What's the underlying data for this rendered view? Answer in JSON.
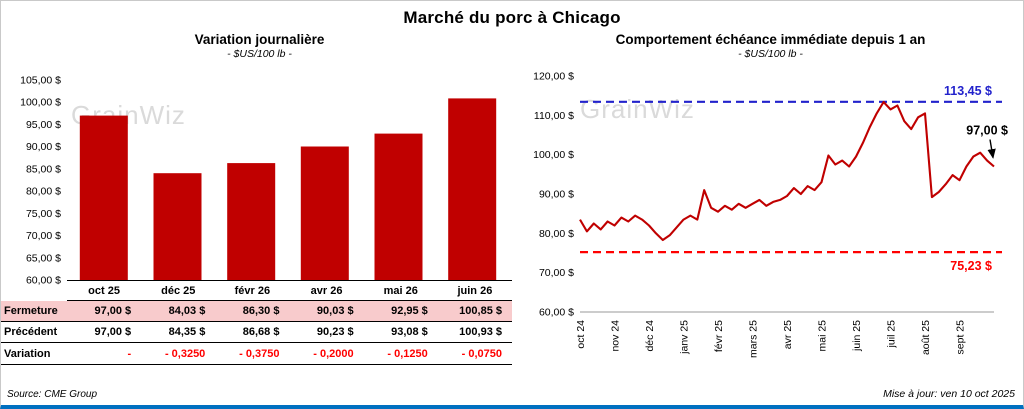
{
  "page": {
    "title": "Marché du porc à Chicago",
    "source": "Source: CME Group",
    "updated": "Mise à jour: ven 10 oct 2025",
    "watermark": "GrainWiz"
  },
  "left_table": {
    "rows": [
      {
        "label": "Fermeture",
        "values": [
          "97,00  $",
          "84,03  $",
          "86,30  $",
          "90,03  $",
          "92,95  $",
          "100,85 $"
        ]
      },
      {
        "label": "Précédent",
        "values": [
          "97,00  $",
          "84,35  $",
          "86,68  $",
          "90,23  $",
          "93,08  $",
          "100,93 $"
        ]
      },
      {
        "label": "Variation",
        "values": [
          "-",
          "- 0,3250",
          "- 0,3750",
          "- 0,2000",
          "- 0,1250",
          "- 0,0750"
        ]
      }
    ]
  },
  "chart_data": [
    {
      "type": "bar",
      "title": "Variation journalière",
      "subtitle": "- $US/100 lb -",
      "categories": [
        "oct 25",
        "déc 25",
        "févr 26",
        "avr 26",
        "mai 26",
        "juin 26"
      ],
      "values": [
        97.0,
        84.03,
        86.3,
        90.03,
        92.95,
        100.85
      ],
      "ylim": [
        60,
        105
      ],
      "ytick_step": 5,
      "bar_color": "#C00000",
      "grid": false,
      "legend": false
    },
    {
      "type": "line",
      "title": "Comportement échéance immédiate depuis 1 an",
      "subtitle": "- $US/100 lb -",
      "x_labels": [
        "oct 24",
        "nov 24",
        "déc 24",
        "janv 25",
        "févr 25",
        "mars 25",
        "avr 25",
        "mai 25",
        "juin 25",
        "juil 25",
        "août 25",
        "sept 25"
      ],
      "ylim": [
        60,
        120
      ],
      "ytick_step": 10,
      "series": [
        {
          "name": "échéance immédiate",
          "color": "#C00000",
          "values": [
            83.5,
            80.5,
            82.5,
            81.0,
            83.0,
            82.0,
            84.0,
            83.0,
            84.5,
            83.5,
            82.0,
            80.0,
            78.3,
            79.5,
            81.5,
            83.5,
            84.5,
            83.5,
            91.0,
            86.5,
            85.5,
            87.0,
            86.0,
            87.5,
            86.5,
            87.5,
            88.5,
            87.0,
            88.0,
            88.5,
            89.5,
            91.5,
            90.0,
            92.0,
            91.0,
            93.0,
            99.8,
            97.5,
            98.5,
            97.0,
            99.5,
            103.0,
            107.0,
            110.5,
            113.4,
            111.5,
            112.5,
            108.5,
            106.5,
            109.5,
            110.5,
            89.2,
            90.5,
            92.5,
            94.8,
            93.5,
            97.0,
            99.5,
            100.5,
            98.5,
            97.0
          ]
        }
      ],
      "max_line": {
        "value": 113.45,
        "label": "113,45 $",
        "color": "#2222CC",
        "style": "dashed"
      },
      "min_line": {
        "value": 75.23,
        "label": "75,23 $",
        "color": "#FF0000",
        "style": "dashed"
      },
      "last_label": {
        "value": 97.0,
        "label": "97,00 $"
      },
      "grid": false,
      "legend": false
    }
  ]
}
